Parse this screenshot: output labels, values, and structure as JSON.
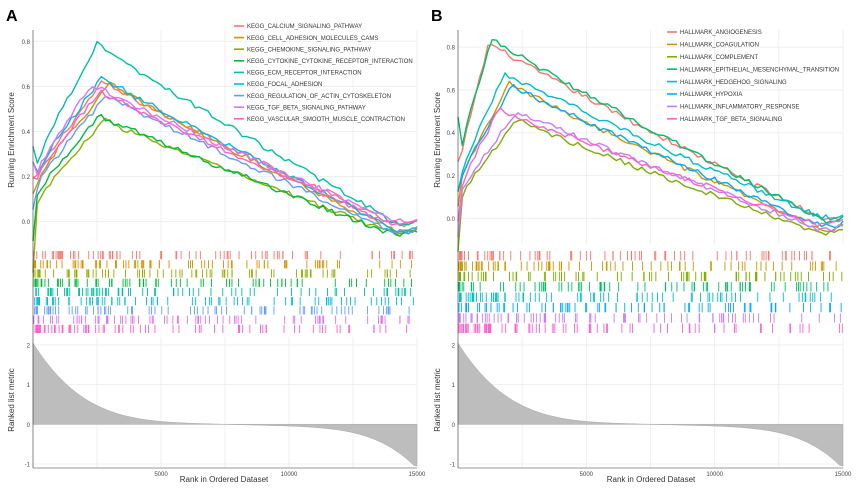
{
  "panels": [
    {
      "label": "A",
      "ylabel_es": "Running Enrichment Score",
      "ylabel_metric": "Ranked list metric",
      "xlabel": "Rank in Ordered Dataset",
      "es_ticks": [
        "0.0",
        "0.2",
        "0.4",
        "0.6",
        "0.8"
      ],
      "metric_ticks": [
        "2",
        "1",
        "0",
        "-1"
      ],
      "x_ticks": [
        "5000",
        "10000",
        "15000"
      ]
    },
    {
      "label": "B",
      "ylabel_es": "Running Enrichment Score",
      "ylabel_metric": "Ranked list metric",
      "xlabel": "Rank in Ordered Dataset",
      "es_ticks": [
        "0.0",
        "0.2",
        "0.4",
        "0.6",
        "0.8"
      ],
      "metric_ticks": [
        "2",
        "1",
        "0",
        "-1"
      ],
      "x_ticks": [
        "5000",
        "10000",
        "15000"
      ]
    }
  ],
  "chart_data": [
    {
      "type": "line",
      "panel": "A",
      "xlabel": "Rank in Ordered Dataset",
      "ylabel": "Running Enrichment Score",
      "xlim": [
        0,
        15000
      ],
      "ylim": [
        -0.1,
        0.85
      ],
      "metric_ylim": [
        -1.1,
        2.2
      ],
      "grid": true,
      "legend": "top-right",
      "series": [
        {
          "name": "KEGG_CALCIUM_SIGNALING_PATHWAY",
          "color": "#F8766D",
          "peak_x": 2700,
          "peak_y": 0.62,
          "start_y": 0.35,
          "end_y": 0.0
        },
        {
          "name": "KEGG_CELL_ADHESION_MOLECULES_CAMS",
          "color": "#D39200",
          "peak_x": 3000,
          "peak_y": 0.61,
          "start_y": 0.3,
          "end_y": -0.03
        },
        {
          "name": "KEGG_CHEMOKINE_SIGNALING_PATHWAY",
          "color": "#93AA00",
          "peak_x": 2800,
          "peak_y": 0.45,
          "start_y": 0.05,
          "end_y": -0.03
        },
        {
          "name": "KEGG_CYTOKINE_CYTOKINE_RECEPTOR_INTERACTION",
          "color": "#00BA38",
          "peak_x": 2600,
          "peak_y": 0.47,
          "start_y": 0.15,
          "end_y": -0.04
        },
        {
          "name": "KEGG_ECM_RECEPTOR_INTERACTION",
          "color": "#00C19F",
          "peak_x": 2500,
          "peak_y": 0.79,
          "start_y": 0.45,
          "end_y": 0.0
        },
        {
          "name": "KEGG_FOCAL_ADHESION",
          "color": "#00B9E3",
          "peak_x": 2700,
          "peak_y": 0.64,
          "start_y": 0.4,
          "end_y": -0.02
        },
        {
          "name": "KEGG_REGULATION_OF_ACTIN_CYTOSKELETON",
          "color": "#619CFF",
          "peak_x": 2900,
          "peak_y": 0.56,
          "start_y": 0.25,
          "end_y": -0.03
        },
        {
          "name": "KEGG_TGF_BETA_SIGNALING_PATHWAY",
          "color": "#DB72FB",
          "peak_x": 2300,
          "peak_y": 0.61,
          "start_y": 0.4,
          "end_y": 0.02
        },
        {
          "name": "KEGG_VASCULAR_SMOOTH_MUSCLE_CONTRACTION",
          "color": "#FF61C3",
          "peak_x": 2600,
          "peak_y": 0.58,
          "start_y": 0.35,
          "end_y": 0.0
        }
      ]
    },
    {
      "type": "line",
      "panel": "B",
      "xlabel": "Rank in Ordered Dataset",
      "ylabel": "Running Enrichment Score",
      "xlim": [
        0,
        15000
      ],
      "ylim": [
        -0.12,
        0.88
      ],
      "metric_ylim": [
        -1.1,
        2.2
      ],
      "grid": true,
      "legend": "top-right",
      "series": [
        {
          "name": "HALLMARK_ANGIOGENESIS",
          "color": "#F8766D",
          "peak_x": 1200,
          "peak_y": 0.82,
          "start_y": 0.4,
          "end_y": 0.01
        },
        {
          "name": "HALLMARK_COAGULATION",
          "color": "#CD9600",
          "peak_x": 2000,
          "peak_y": 0.63,
          "start_y": 0.25,
          "end_y": -0.04
        },
        {
          "name": "HALLMARK_COMPLEMENT",
          "color": "#7CAE00",
          "peak_x": 2300,
          "peak_y": 0.46,
          "start_y": 0.1,
          "end_y": -0.05
        },
        {
          "name": "HALLMARK_EPITHELIAL_MESENCHYMAL_TRANSITION",
          "color": "#00BE67",
          "peak_x": 1300,
          "peak_y": 0.84,
          "start_y": 0.55,
          "end_y": 0.0
        },
        {
          "name": "HALLMARK_HEDGEHOG_SIGNALING",
          "color": "#00BFC4",
          "peak_x": 1800,
          "peak_y": 0.68,
          "start_y": 0.3,
          "end_y": 0.02
        },
        {
          "name": "HALLMARK_HYPOXIA",
          "color": "#00A9FF",
          "peak_x": 2100,
          "peak_y": 0.62,
          "start_y": 0.3,
          "end_y": -0.02
        },
        {
          "name": "HALLMARK_INFLAMMATORY_RESPONSE",
          "color": "#C77CFF",
          "peak_x": 2300,
          "peak_y": 0.5,
          "start_y": 0.15,
          "end_y": -0.03
        },
        {
          "name": "HALLMARK_TGF_BETA_SIGNALING",
          "color": "#FF61CC",
          "peak_x": 1600,
          "peak_y": 0.51,
          "start_y": 0.2,
          "end_y": -0.01
        }
      ]
    }
  ]
}
